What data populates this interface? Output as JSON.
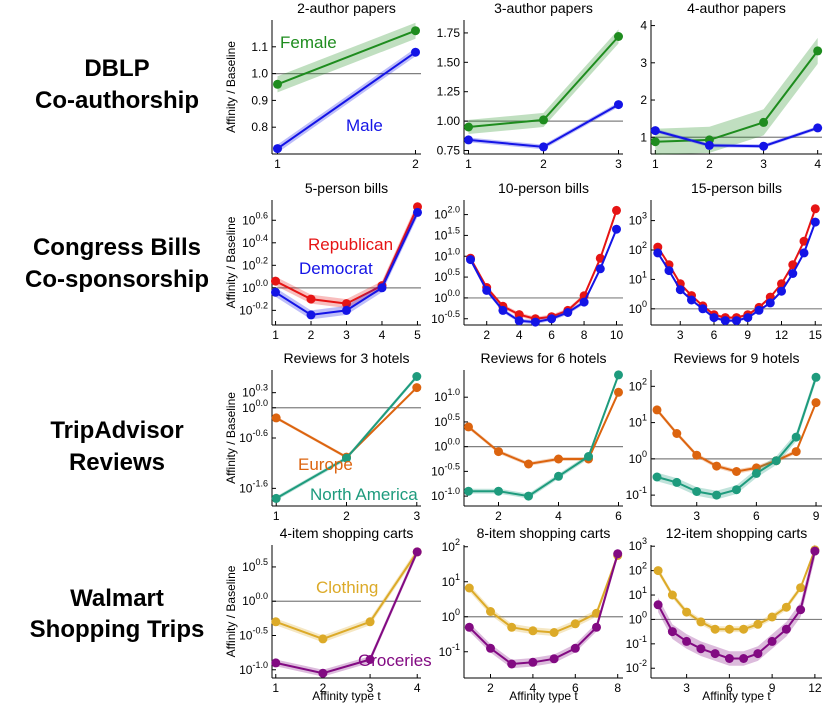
{
  "row_labels": [
    [
      "DBLP",
      "Co-authorship"
    ],
    [
      "Congress Bills",
      "Co-sponsorship"
    ],
    [
      "TripAdvisor",
      "Reviews"
    ],
    [
      "Walmart",
      "Shopping Trips"
    ]
  ],
  "ylabel": "Affinity / Baseline",
  "xlabel": "Affinity type t",
  "colors": {
    "Female": "#1e8c1e",
    "Male": "#1414e6",
    "Republican": "#e61414",
    "Democrat": "#1414e6",
    "Europe": "#dc640f",
    "North America": "#1e9b7d",
    "Clothing": "#dcaa28",
    "Groceries": "#820a82",
    "baseline": "#808080"
  },
  "chart_data": [
    {
      "type": "line",
      "title": "2-author papers",
      "scale": "linear",
      "x": [
        1,
        2
      ],
      "xticks": [
        1,
        2
      ],
      "xlim": [
        0.96,
        2.04
      ],
      "ylim": [
        0.7,
        1.2
      ],
      "yticks": [
        0.8,
        0.9,
        1.0,
        1.1
      ],
      "ytick_labels": [
        "0.8",
        "0.9",
        "1.0",
        "1.1"
      ],
      "series": [
        {
          "name": "Female",
          "values": [
            0.96,
            1.16
          ],
          "band": 0.03
        },
        {
          "name": "Male",
          "values": [
            0.72,
            1.08
          ],
          "band": 0.015
        }
      ]
    },
    {
      "type": "line",
      "title": "3-author papers",
      "scale": "linear",
      "x": [
        1,
        2,
        3
      ],
      "xticks": [
        1,
        2,
        3
      ],
      "xlim": [
        0.94,
        3.06
      ],
      "ylim": [
        0.72,
        1.86
      ],
      "yticks": [
        0.75,
        1.0,
        1.25,
        1.5,
        1.75
      ],
      "ytick_labels": [
        "0.75",
        "1.00",
        "1.25",
        "1.50",
        "1.75"
      ],
      "series": [
        {
          "name": "",
          "colorKey": "Female",
          "values": [
            0.95,
            1.01,
            1.72
          ],
          "band": 0.06
        },
        {
          "name": "",
          "colorKey": "Male",
          "values": [
            0.84,
            0.78,
            1.14
          ],
          "band": 0.02
        }
      ]
    },
    {
      "type": "line",
      "title": "4-author papers",
      "scale": "linear",
      "x": [
        1,
        2,
        3,
        4
      ],
      "xticks": [
        1,
        2,
        3,
        4
      ],
      "xlim": [
        0.92,
        4.08
      ],
      "ylim": [
        0.55,
        4.15
      ],
      "yticks": [
        1,
        2,
        3,
        4
      ],
      "ytick_labels": [
        "1",
        "2",
        "3",
        "4"
      ],
      "series": [
        {
          "name": "",
          "colorKey": "Female",
          "values": [
            0.88,
            0.93,
            1.4,
            3.32
          ],
          "band": 0.35
        },
        {
          "name": "",
          "colorKey": "Male",
          "values": [
            1.18,
            0.78,
            0.76,
            1.25
          ],
          "band": 0.05
        }
      ]
    },
    {
      "type": "line",
      "title": "5-person bills",
      "scale": "log",
      "x": [
        1,
        2,
        3,
        4,
        5
      ],
      "xticks": [
        1,
        2,
        3,
        4,
        5
      ],
      "xlim": [
        0.9,
        5.1
      ],
      "ylim": [
        -0.33,
        0.78
      ],
      "yticks": [
        -0.2,
        0.0,
        0.2,
        0.4,
        0.6
      ],
      "ytick_labels": [
        "10^-0.2",
        "10^0.0",
        "10^0.2",
        "10^0.4",
        "10^0.6"
      ],
      "series": [
        {
          "name": "Republican",
          "values": [
            0.06,
            -0.1,
            -0.14,
            0.02,
            0.72
          ],
          "band": 0.04
        },
        {
          "name": "Democrat",
          "values": [
            -0.04,
            -0.24,
            -0.2,
            0.0,
            0.67
          ],
          "band": 0.04
        }
      ]
    },
    {
      "type": "line",
      "title": "10-person bills",
      "scale": "log",
      "x": [
        1,
        2,
        3,
        4,
        5,
        6,
        7,
        8,
        9,
        10
      ],
      "xticks": [
        2,
        4,
        6,
        8,
        10
      ],
      "xlim": [
        0.6,
        10.4
      ],
      "ylim": [
        -0.65,
        2.35
      ],
      "yticks": [
        -0.5,
        0.0,
        0.5,
        1.0,
        1.5,
        2.0
      ],
      "ytick_labels": [
        "10^-0.5",
        "10^0.0",
        "10^0.5",
        "10^1.0",
        "10^1.5",
        "10^2.0"
      ],
      "series": [
        {
          "name": "",
          "colorKey": "Republican",
          "values": [
            0.95,
            0.25,
            -0.2,
            -0.4,
            -0.5,
            -0.45,
            -0.3,
            0.05,
            0.95,
            2.1
          ],
          "band": 0.05
        },
        {
          "name": "",
          "colorKey": "Democrat",
          "values": [
            0.92,
            0.18,
            -0.3,
            -0.55,
            -0.58,
            -0.5,
            -0.35,
            -0.1,
            0.7,
            1.65
          ],
          "band": 0.05
        }
      ]
    },
    {
      "type": "line",
      "title": "15-person bills",
      "scale": "log",
      "x": [
        1,
        2,
        3,
        4,
        5,
        6,
        7,
        8,
        9,
        10,
        11,
        12,
        13,
        14,
        15
      ],
      "xticks": [
        3,
        6,
        9,
        12,
        15
      ],
      "xlim": [
        0.4,
        15.6
      ],
      "ylim": [
        -0.55,
        3.7
      ],
      "yticks": [
        0,
        1,
        2,
        3
      ],
      "ytick_labels": [
        "10^0",
        "10^1",
        "10^2",
        "10^3"
      ],
      "series": [
        {
          "name": "",
          "colorKey": "Republican",
          "values": [
            2.1,
            1.5,
            0.85,
            0.45,
            0.1,
            -0.2,
            -0.3,
            -0.3,
            -0.2,
            0.05,
            0.4,
            0.85,
            1.5,
            2.3,
            3.4
          ],
          "band": 0.05
        },
        {
          "name": "",
          "colorKey": "Democrat",
          "values": [
            1.9,
            1.3,
            0.65,
            0.3,
            0.0,
            -0.3,
            -0.4,
            -0.4,
            -0.3,
            -0.05,
            0.2,
            0.6,
            1.2,
            1.9,
            2.95
          ],
          "band": 0.05
        }
      ]
    },
    {
      "type": "line",
      "title": "Reviews for 3 hotels",
      "scale": "log",
      "x": [
        1,
        2,
        3
      ],
      "xticks": [
        1,
        2,
        3
      ],
      "xlim": [
        0.94,
        3.06
      ],
      "ylim": [
        -1.95,
        0.75
      ],
      "yticks": [
        -1.6,
        -0.6,
        0.0,
        0.3
      ],
      "ytick_labels": [
        "10^-1.6",
        "10^-0.6",
        "10^0.0",
        "10^0.3"
      ],
      "series": [
        {
          "name": "Europe",
          "values": [
            -0.2,
            -0.98,
            0.4
          ],
          "band": 0.03
        },
        {
          "name": "North America",
          "values": [
            -1.8,
            -1.0,
            0.62
          ],
          "band": 0.04
        }
      ]
    },
    {
      "type": "line",
      "title": "Reviews for 6 hotels",
      "scale": "log",
      "x": [
        1,
        2,
        3,
        4,
        5,
        6
      ],
      "xticks": [
        2,
        4,
        6
      ],
      "xlim": [
        0.85,
        6.15
      ],
      "ylim": [
        -1.2,
        1.55
      ],
      "yticks": [
        -1.0,
        -0.5,
        0.0,
        0.5,
        1.0
      ],
      "ytick_labels": [
        "10^-1.0",
        "10^-0.5",
        "10^0.0",
        "10^0.5",
        "10^1.0"
      ],
      "series": [
        {
          "name": "",
          "colorKey": "Europe",
          "values": [
            0.4,
            -0.1,
            -0.35,
            -0.25,
            -0.25,
            1.1
          ],
          "band": 0.04
        },
        {
          "name": "",
          "colorKey": "North America",
          "values": [
            -0.9,
            -0.9,
            -1.0,
            -0.6,
            -0.2,
            1.45
          ],
          "band": 0.05
        }
      ]
    },
    {
      "type": "line",
      "title": "Reviews for 9 hotels",
      "scale": "log",
      "x": [
        1,
        2,
        3,
        4,
        5,
        6,
        7,
        8,
        9
      ],
      "xticks": [
        3,
        6,
        9
      ],
      "xlim": [
        0.7,
        9.3
      ],
      "ylim": [
        -1.3,
        2.45
      ],
      "yticks": [
        -1,
        0,
        1,
        2
      ],
      "ytick_labels": [
        "10^-1",
        "10^0",
        "10^1",
        "10^2"
      ],
      "series": [
        {
          "name": "",
          "colorKey": "Europe",
          "values": [
            1.35,
            0.7,
            0.1,
            -0.2,
            -0.35,
            -0.25,
            -0.05,
            0.2,
            1.55
          ],
          "band": 0.06
        },
        {
          "name": "",
          "colorKey": "North America",
          "values": [
            -0.5,
            -0.65,
            -0.9,
            -1.0,
            -0.85,
            -0.4,
            -0.05,
            0.6,
            2.25
          ],
          "band": 0.12
        }
      ]
    },
    {
      "type": "line",
      "title": "4-item shopping carts",
      "scale": "log",
      "x": [
        1,
        2,
        3,
        4
      ],
      "xticks": [
        1,
        2,
        3,
        4
      ],
      "xlim": [
        0.92,
        4.08
      ],
      "ylim": [
        -1.12,
        0.82
      ],
      "yticks": [
        -1.0,
        -0.5,
        0.0,
        0.5
      ],
      "ytick_labels": [
        "10^-1.0",
        "10^-0.5",
        "10^0.0",
        "10^0.5"
      ],
      "series": [
        {
          "name": "Clothing",
          "values": [
            -0.3,
            -0.55,
            -0.3,
            0.72
          ],
          "band": 0.05
        },
        {
          "name": "Groceries",
          "values": [
            -0.9,
            -1.05,
            -0.85,
            0.72
          ],
          "band": 0.05
        }
      ]
    },
    {
      "type": "line",
      "title": "8-item shopping carts",
      "scale": "log",
      "x": [
        1,
        2,
        3,
        4,
        5,
        6,
        7,
        8
      ],
      "xticks": [
        2,
        4,
        6,
        8
      ],
      "xlim": [
        0.75,
        8.25
      ],
      "ylim": [
        -1.75,
        2.05
      ],
      "yticks": [
        -1,
        0,
        1,
        2
      ],
      "ytick_labels": [
        "10^-1",
        "10^0",
        "10^1",
        "10^2"
      ],
      "series": [
        {
          "name": "",
          "colorKey": "Clothing",
          "values": [
            0.82,
            0.15,
            -0.3,
            -0.4,
            -0.45,
            -0.2,
            0.1,
            1.75
          ],
          "band": 0.1
        },
        {
          "name": "",
          "colorKey": "Groceries",
          "values": [
            -0.3,
            -0.9,
            -1.35,
            -1.3,
            -1.2,
            -0.9,
            -0.3,
            1.8
          ],
          "band": 0.12
        }
      ]
    },
    {
      "type": "line",
      "title": "12-item shopping carts",
      "scale": "log",
      "x": [
        1,
        2,
        3,
        4,
        5,
        6,
        7,
        8,
        9,
        10,
        11,
        12
      ],
      "xticks": [
        3,
        6,
        9,
        12
      ],
      "xlim": [
        0.5,
        12.5
      ],
      "ylim": [
        -2.4,
        3.05
      ],
      "yticks": [
        -2,
        -1,
        0,
        1,
        2,
        3
      ],
      "ytick_labels": [
        "10^-2",
        "10^-1",
        "10^0",
        "10^1",
        "10^2",
        "10^3"
      ],
      "series": [
        {
          "name": "",
          "colorKey": "Clothing",
          "values": [
            2.0,
            1.0,
            0.3,
            -0.1,
            -0.4,
            -0.4,
            -0.4,
            -0.2,
            0.1,
            0.5,
            1.3,
            2.85
          ],
          "band": 0.12
        },
        {
          "name": "",
          "colorKey": "Groceries",
          "values": [
            0.6,
            -0.5,
            -0.9,
            -1.2,
            -1.4,
            -1.6,
            -1.6,
            -1.4,
            -0.9,
            -0.4,
            0.4,
            2.8
          ],
          "band": 0.3
        }
      ]
    }
  ]
}
